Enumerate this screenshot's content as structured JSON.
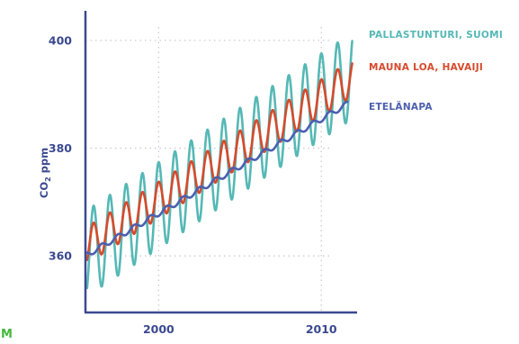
{
  "chart_data": {
    "type": "line",
    "ylabel_main": "CO",
    "ylabel_sub": "2",
    "ylabel_unit": "ppm",
    "xlim": [
      1995.5,
      2012.2
    ],
    "ylim": [
      349.5,
      405.5
    ],
    "x_ticks": [
      {
        "value": 2000,
        "label": "2000"
      },
      {
        "value": 2010,
        "label": "2010"
      }
    ],
    "y_ticks": [
      {
        "value": 360,
        "label": "360"
      },
      {
        "value": 380,
        "label": "380"
      },
      {
        "value": 400,
        "label": "400"
      }
    ],
    "grid": true,
    "legend_position": "right",
    "series": [
      {
        "name": "PALLASTUNTURI, SUOMI",
        "color": "#55b8b5",
        "x_start": 1995.6,
        "x_end": 2011.9,
        "trend_start": 360.5,
        "trend_rate": 2.02,
        "amplitude": 8.0,
        "peak_phase": 0.0
      },
      {
        "name": "MAUNA LOA, HAVAIJI",
        "color": "#d64a2c",
        "x_start": 1995.6,
        "x_end": 2011.9,
        "trend_start": 362.0,
        "trend_rate": 1.9,
        "amplitude": 3.4,
        "peak_phase": 0.0
      },
      {
        "name": "ETELÄNAPA",
        "color": "#4c5fae",
        "x_start": 1995.6,
        "x_end": 2011.6,
        "trend_start": 360.2,
        "trend_rate": 1.75,
        "amplitude": 0.5,
        "peak_phase": 0.5
      }
    ]
  },
  "corner_label": "M",
  "colors": {
    "axis": "#3b4990",
    "grid": "#c9cbd6",
    "corner": "#46b83a"
  }
}
